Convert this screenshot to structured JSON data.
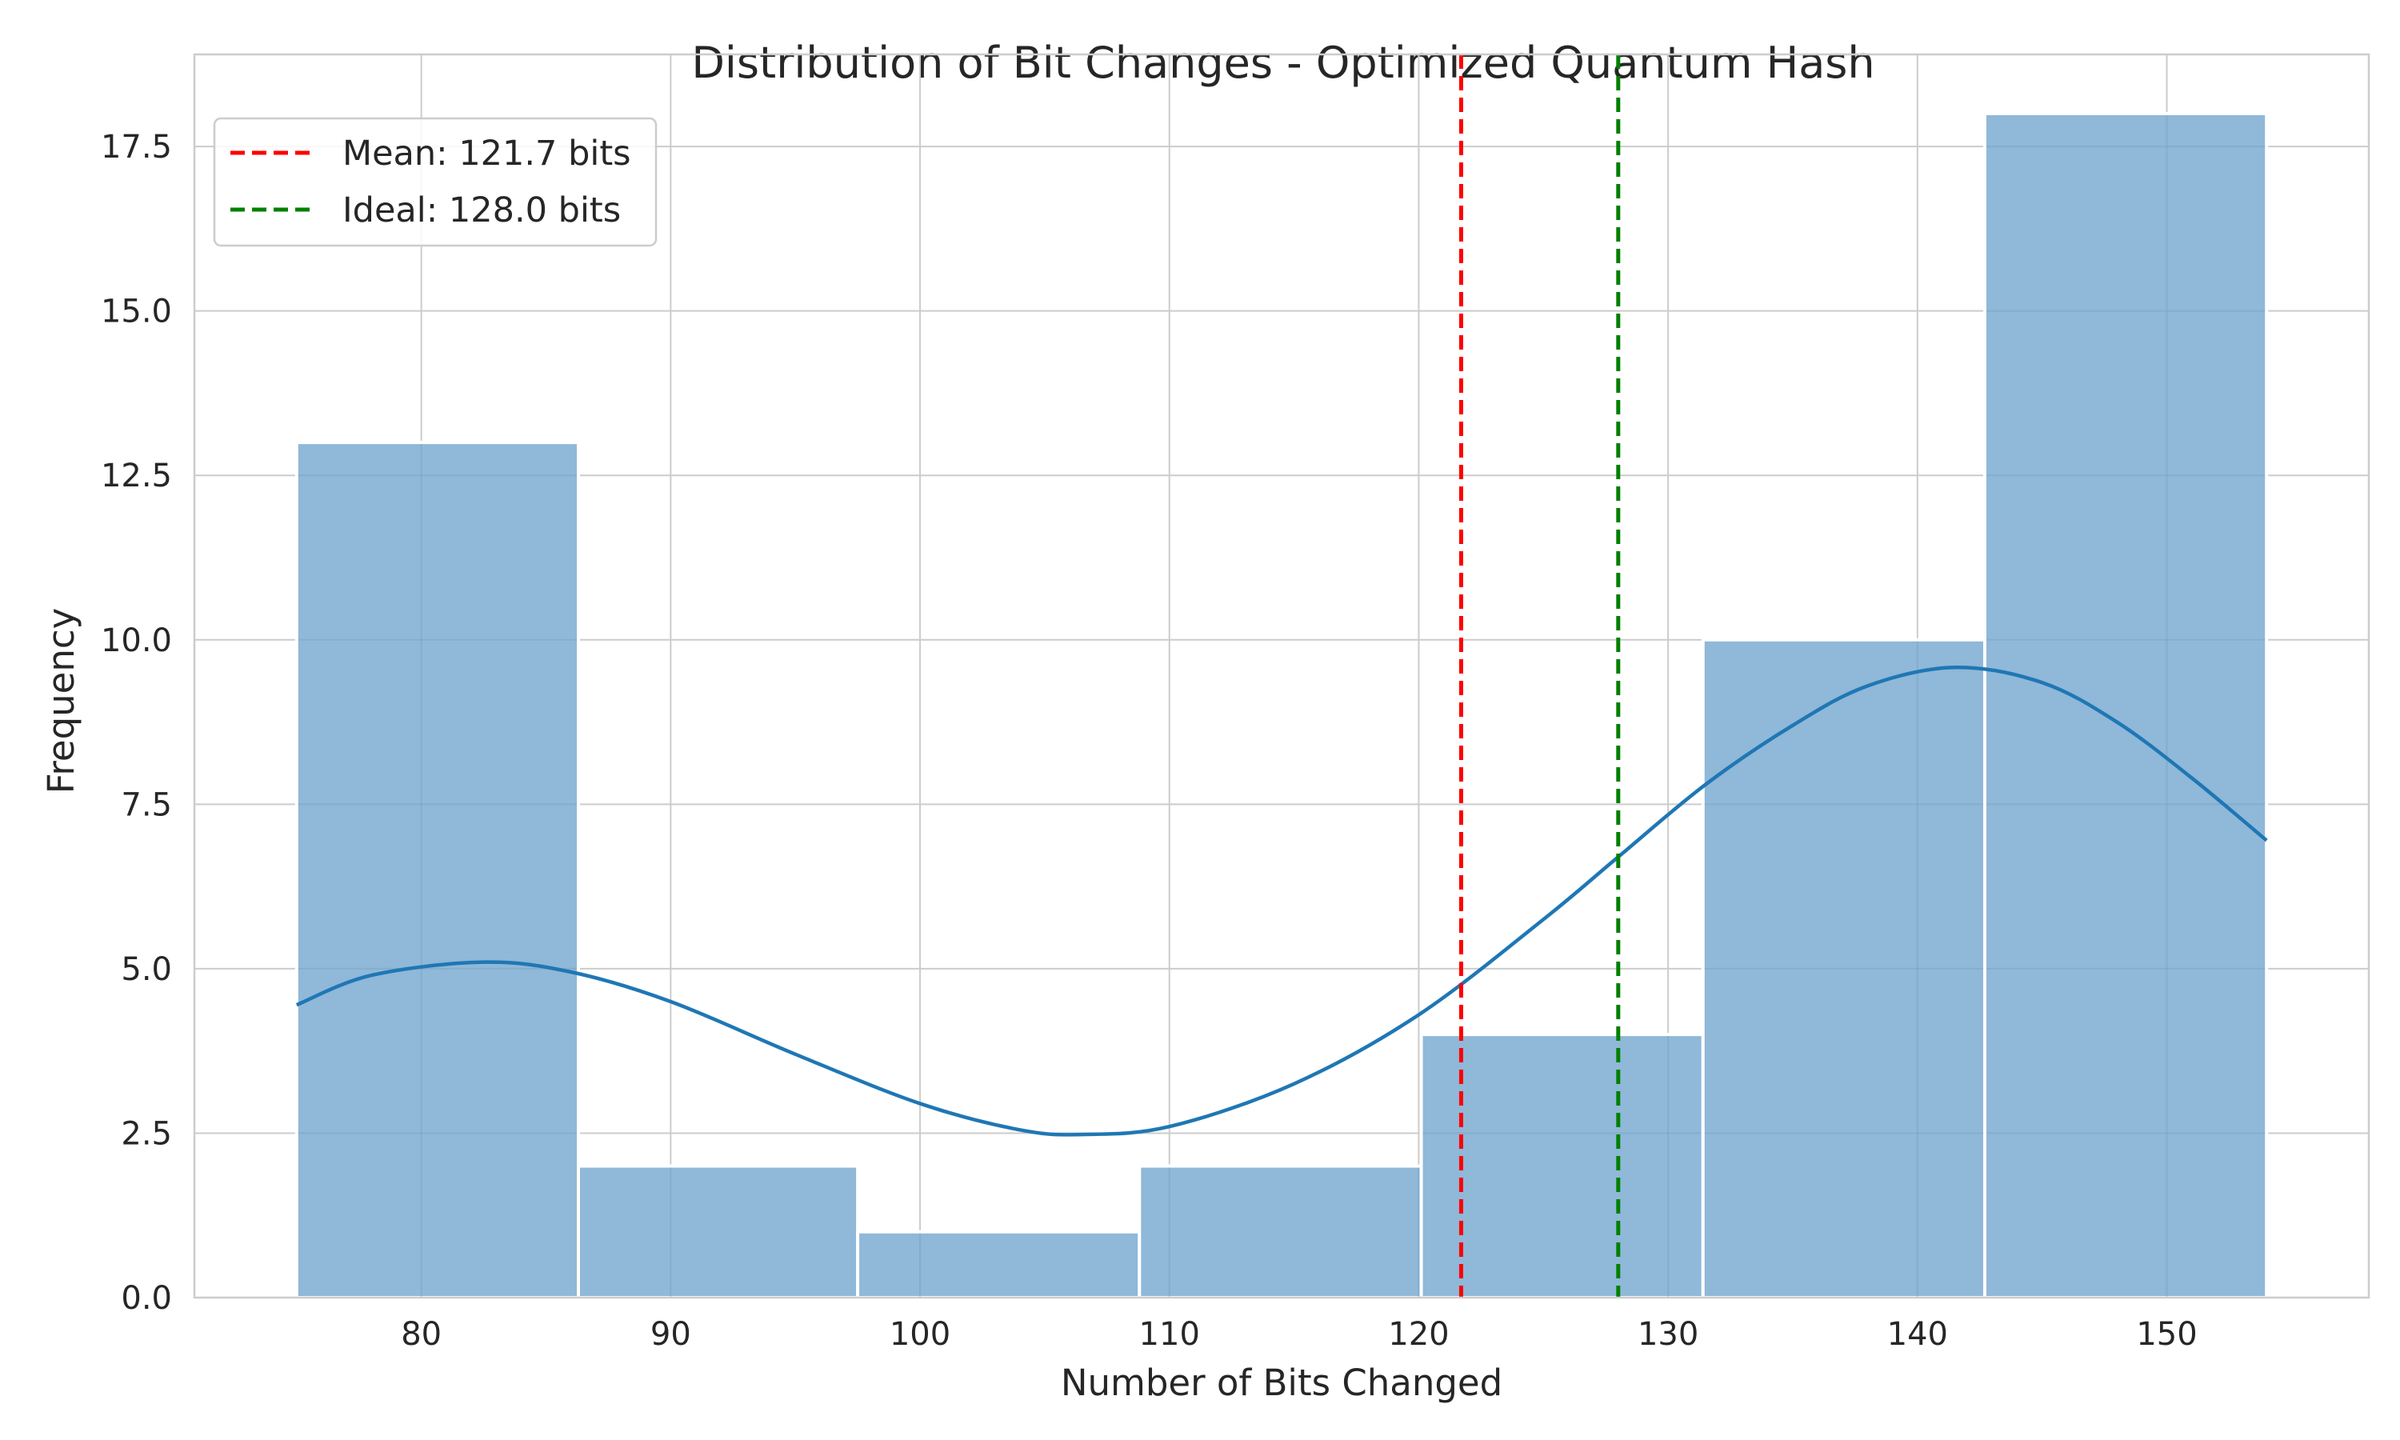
{
  "chart_data": {
    "type": "bar",
    "subtype": "histogram",
    "title": "Distribution of Bit Changes - Optimized Quantum Hash",
    "xlabel": "Number of Bits Changed",
    "ylabel": "Frequency",
    "xlim": [
      70.9,
      158.1
    ],
    "ylim": [
      0,
      18.9
    ],
    "xticks": [
      80,
      90,
      100,
      110,
      120,
      130,
      140,
      150
    ],
    "yticks": [
      0.0,
      2.5,
      5.0,
      7.5,
      10.0,
      12.5,
      15.0,
      17.5
    ],
    "xtick_labels": [
      "80",
      "90",
      "100",
      "110",
      "120",
      "130",
      "140",
      "150"
    ],
    "ytick_labels": [
      "0.0",
      "2.5",
      "5.0",
      "7.5",
      "10.0",
      "12.5",
      "15.0",
      "17.5"
    ],
    "grid": true,
    "bins": [
      {
        "start": 75.0,
        "end": 86.3,
        "count": 13
      },
      {
        "start": 86.3,
        "end": 97.5,
        "count": 2
      },
      {
        "start": 97.5,
        "end": 108.8,
        "count": 1
      },
      {
        "start": 108.8,
        "end": 120.1,
        "count": 2
      },
      {
        "start": 120.1,
        "end": 131.4,
        "count": 4
      },
      {
        "start": 131.4,
        "end": 142.7,
        "count": 10
      },
      {
        "start": 142.7,
        "end": 154.0,
        "count": 18
      }
    ],
    "kde": {
      "x": [
        75,
        78,
        82.5,
        86,
        90,
        95,
        100,
        104,
        106.5,
        110,
        115,
        120,
        125,
        128,
        131.5,
        135,
        138,
        141.5,
        145,
        148,
        151,
        154
      ],
      "y": [
        4.45,
        4.9,
        5.1,
        4.95,
        4.5,
        3.7,
        2.95,
        2.55,
        2.48,
        2.6,
        3.25,
        4.3,
        5.75,
        6.7,
        7.8,
        8.7,
        9.3,
        9.58,
        9.35,
        8.75,
        7.9,
        6.95
      ]
    },
    "reference_lines": [
      {
        "label": "Mean: 121.7 bits",
        "value": 121.7,
        "color": "#ff0000"
      },
      {
        "label": "Ideal: 128.0 bits",
        "value": 128.0,
        "color": "#008000"
      }
    ],
    "legend_position": "top-left",
    "colors": {
      "bar_fill": "#8fb8d9",
      "bar_edge": "#ffffff",
      "kde_line": "#1f77b4",
      "grid": "#cccccc",
      "bar_grid": "#7a9fbd"
    }
  }
}
